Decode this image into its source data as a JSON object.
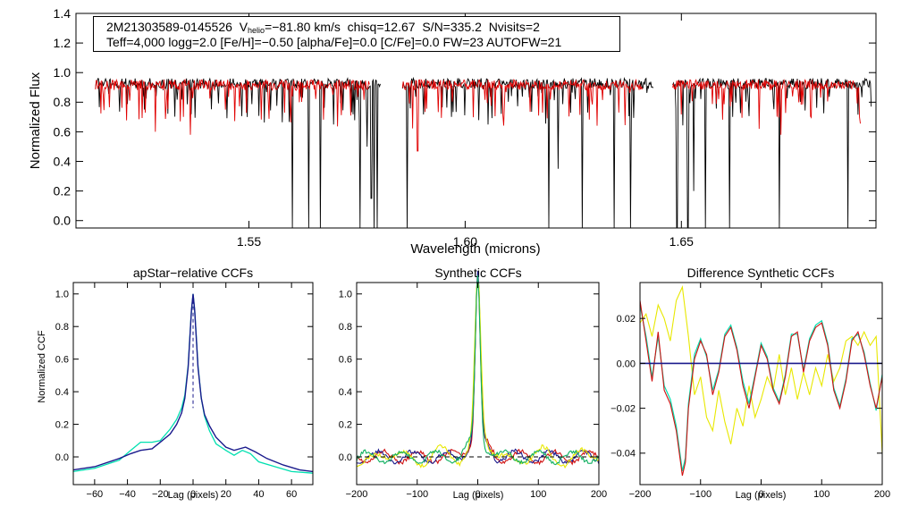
{
  "header": {
    "star_id": "2M21303589-0145526",
    "vhelio_label": "V",
    "vhelio_sub": "helio",
    "vhelio_value": "=−81.80 km/s",
    "chisq": "chisq=12.67",
    "snr": "S/N=335.2",
    "nvisits": "Nvisits=2",
    "params_line": "Teff=4,000 logg=2.0 [Fe/H]=−0.50 [alpha/Fe]=0.0 [C/Fe]=0.0 FW=23 AUTOFW=21"
  },
  "colors": {
    "observed": "#000000",
    "model": "#e00000",
    "ccf_cyan": "#00e0b0",
    "ccf_navy": "#1a1a8c",
    "ccf_yellow": "#e8e800",
    "ccf_red": "#d01010",
    "ccf_green": "#10b060"
  },
  "chart_data": [
    {
      "type": "line",
      "title": "",
      "xlabel": "Wavelength (microns)",
      "ylabel": "Normalized Flux",
      "xlim": [
        1.51,
        1.695
      ],
      "ylim": [
        -0.05,
        1.4
      ],
      "xticks": [
        1.55,
        1.6,
        1.65
      ],
      "xtick_labels": [
        "1.55",
        "1.60",
        "1.65"
      ],
      "yticks": [
        0.0,
        0.2,
        0.4,
        0.6,
        0.8,
        1.0,
        1.2,
        1.4
      ],
      "ytick_labels": [
        "0.0",
        "0.2",
        "0.4",
        "0.6",
        "0.8",
        "1.0",
        "1.2",
        "1.4"
      ],
      "chip_ranges": [
        [
          1.5145,
          1.5805
        ],
        [
          1.5855,
          1.6435
        ],
        [
          1.648,
          1.694
        ]
      ],
      "series": [
        {
          "name": "observed",
          "baseline": 0.92
        },
        {
          "name": "model",
          "baseline": 0.91
        }
      ],
      "deep_lines": [
        {
          "wl": 1.56,
          "depth": -0.05
        },
        {
          "wl": 1.5638,
          "depth": -0.05
        },
        {
          "wl": 1.5665,
          "depth": -0.05
        },
        {
          "wl": 1.5757,
          "depth": -0.05
        },
        {
          "wl": 1.5773,
          "depth": 0.5
        },
        {
          "wl": 1.5783,
          "depth": 0.15
        },
        {
          "wl": 1.579,
          "depth": -0.05
        },
        {
          "wl": 1.5797,
          "depth": -0.05
        },
        {
          "wl": 1.5866,
          "depth": -0.05
        },
        {
          "wl": 1.6193,
          "depth": -0.05
        },
        {
          "wl": 1.6215,
          "depth": 0.35
        },
        {
          "wl": 1.6271,
          "depth": -0.05
        },
        {
          "wl": 1.6345,
          "depth": -0.05
        },
        {
          "wl": 1.6383,
          "depth": -0.05
        },
        {
          "wl": 1.649,
          "depth": -0.05
        },
        {
          "wl": 1.6515,
          "depth": -0.05
        },
        {
          "wl": 1.6528,
          "depth": 0.2
        },
        {
          "wl": 1.6556,
          "depth": -0.05
        },
        {
          "wl": 1.6612,
          "depth": -0.05
        },
        {
          "wl": 1.6727,
          "depth": -0.05
        },
        {
          "wl": 1.6885,
          "depth": -0.05
        }
      ],
      "model_lines": [
        {
          "wl": 1.5283,
          "depth": 0.6
        },
        {
          "wl": 1.5365,
          "depth": 0.58
        },
        {
          "wl": 1.5445,
          "depth": 0.75
        },
        {
          "wl": 1.589,
          "depth": 0.47
        },
        {
          "wl": 1.644,
          "depth": 0.56
        },
        {
          "wl": 1.668,
          "depth": 0.62
        },
        {
          "wl": 1.673,
          "depth": 0.58
        }
      ]
    },
    {
      "type": "line",
      "title": "apStar−relative CCFs",
      "xlabel": "Lag (pixels)",
      "ylabel": "Normalized CCF",
      "xlim": [
        -73,
        73
      ],
      "ylim": [
        -0.17,
        1.07
      ],
      "xticks": [
        -60,
        -40,
        -20,
        0,
        20,
        40,
        60
      ],
      "xtick_labels": [
        "−60",
        "−40",
        "−20",
        "0",
        "20",
        "40",
        "60"
      ],
      "yticks": [
        0.0,
        0.2,
        0.4,
        0.6,
        0.8,
        1.0
      ],
      "ytick_labels": [
        "0.0",
        "0.2",
        "0.4",
        "0.6",
        "0.8",
        "1.0"
      ],
      "series": [
        {
          "name": "ccf_navy",
          "x": [
            -73,
            -60,
            -45,
            -38,
            -32,
            -25,
            -20,
            -14,
            -10,
            -7,
            -5,
            -3,
            -2,
            -1,
            0,
            1,
            2,
            3,
            5,
            7,
            10,
            14,
            20,
            25,
            32,
            38,
            45,
            55,
            65,
            73
          ],
          "y": [
            -0.08,
            -0.06,
            -0.01,
            0.02,
            0.04,
            0.05,
            0.09,
            0.14,
            0.2,
            0.27,
            0.36,
            0.55,
            0.72,
            0.9,
            1.0,
            0.9,
            0.72,
            0.55,
            0.36,
            0.26,
            0.19,
            0.12,
            0.06,
            0.04,
            0.06,
            0.03,
            -0.01,
            -0.05,
            -0.08,
            -0.09
          ]
        },
        {
          "name": "ccf_cyan",
          "x": [
            -73,
            -60,
            -45,
            -38,
            -32,
            -25,
            -20,
            -14,
            -10,
            -7,
            -5,
            -3,
            -2,
            -1,
            0,
            1,
            2,
            3,
            5,
            7,
            10,
            14,
            20,
            25,
            30,
            35,
            40,
            50,
            60,
            73
          ],
          "y": [
            -0.09,
            -0.07,
            -0.02,
            0.04,
            0.09,
            0.09,
            0.1,
            0.17,
            0.23,
            0.3,
            0.38,
            0.56,
            0.73,
            0.9,
            1.0,
            0.9,
            0.73,
            0.56,
            0.36,
            0.25,
            0.16,
            0.08,
            0.04,
            0.01,
            0.04,
            0.02,
            -0.03,
            -0.06,
            -0.09,
            -0.1
          ]
        }
      ],
      "dashed_zero": false
    },
    {
      "type": "line",
      "title": "Synthetic CCFs",
      "xlabel": "Lag (pixels)",
      "ylabel": "",
      "xlim": [
        -200,
        200
      ],
      "ylim": [
        -0.17,
        1.07
      ],
      "xticks": [
        -200,
        -100,
        0,
        100,
        200
      ],
      "xtick_labels": [
        "−200",
        "−100",
        "0",
        "100",
        "200"
      ],
      "yticks": [
        0.0,
        0.2,
        0.4,
        0.6,
        0.8,
        1.0
      ],
      "ytick_labels": [
        "0.0",
        "0.2",
        "0.4",
        "0.6",
        "0.8",
        "1.0"
      ],
      "series": [
        {
          "name": "ccf_red",
          "peak": 1.0,
          "width": 4
        },
        {
          "name": "ccf_navy",
          "peak": 1.0,
          "width": 4
        },
        {
          "name": "ccf_yellow",
          "peak": 0.95,
          "width": 5
        },
        {
          "name": "ccf_green",
          "peak": 0.98,
          "width": 4
        }
      ],
      "dashed_zero": true
    },
    {
      "type": "line",
      "title": "Difference Synthetic CCFs",
      "xlabel": "Lag (pixels)",
      "ylabel": "",
      "xlim": [
        -200,
        200
      ],
      "ylim": [
        -0.054,
        0.036
      ],
      "xticks": [
        -200,
        -100,
        0,
        100,
        200
      ],
      "xtick_labels": [
        "−200",
        "−100",
        "0",
        "100",
        "200"
      ],
      "yticks": [
        -0.04,
        -0.02,
        0.0,
        0.02
      ],
      "ytick_labels": [
        "−0.04",
        "−0.02",
        "0.00",
        "0.02"
      ],
      "series": [
        {
          "name": "ccf_red",
          "x": [
            -200,
            -190,
            -180,
            -170,
            -160,
            -150,
            -140,
            -130,
            -125,
            -120,
            -110,
            -100,
            -90,
            -80,
            -70,
            -60,
            -50,
            -40,
            -30,
            -20,
            -10,
            0,
            10,
            20,
            30,
            40,
            50,
            60,
            70,
            80,
            90,
            100,
            110,
            120,
            130,
            140,
            150,
            160,
            170,
            180,
            190,
            200
          ],
          "y": [
            0.028,
            0.01,
            -0.008,
            0.014,
            -0.012,
            -0.018,
            -0.03,
            -0.05,
            -0.044,
            -0.02,
            0.002,
            0.01,
            0.004,
            -0.014,
            -0.004,
            0.012,
            0.016,
            0.006,
            -0.01,
            -0.02,
            -0.006,
            0.008,
            0.002,
            -0.012,
            -0.018,
            -0.006,
            0.012,
            0.014,
            -0.004,
            0.01,
            0.016,
            0.018,
            0.008,
            -0.012,
            -0.02,
            -0.008,
            0.01,
            0.014,
            0.004,
            -0.01,
            -0.02,
            -0.006
          ]
        },
        {
          "name": "ccf_cyan",
          "x": [
            -200,
            -190,
            -180,
            -170,
            -160,
            -150,
            -140,
            -130,
            -125,
            -120,
            -110,
            -100,
            -90,
            -80,
            -70,
            -60,
            -50,
            -40,
            -30,
            -20,
            -10,
            0,
            10,
            20,
            30,
            40,
            50,
            60,
            70,
            80,
            90,
            100,
            110,
            120,
            130,
            140,
            150,
            160,
            170,
            180,
            190,
            200
          ],
          "y": [
            0.026,
            0.012,
            -0.006,
            0.012,
            -0.01,
            -0.016,
            -0.028,
            -0.048,
            -0.042,
            -0.018,
            0.004,
            0.011,
            0.003,
            -0.012,
            -0.003,
            0.013,
            0.017,
            0.007,
            -0.008,
            -0.018,
            -0.005,
            0.009,
            0.003,
            -0.011,
            -0.017,
            -0.005,
            0.013,
            0.013,
            -0.003,
            0.011,
            0.017,
            0.019,
            0.009,
            -0.011,
            -0.019,
            -0.007,
            0.011,
            0.013,
            0.005,
            -0.009,
            -0.021,
            -0.005
          ]
        },
        {
          "name": "ccf_yellow",
          "x": [
            -200,
            -190,
            -180,
            -170,
            -160,
            -150,
            -140,
            -130,
            -120,
            -110,
            -100,
            -90,
            -80,
            -70,
            -60,
            -50,
            -40,
            -30,
            -20,
            -10,
            0,
            10,
            20,
            30,
            40,
            50,
            60,
            70,
            80,
            90,
            100,
            110,
            120,
            130,
            140,
            150,
            160,
            170,
            180,
            190,
            200
          ],
          "y": [
            0.018,
            0.022,
            0.012,
            0.026,
            0.02,
            0.01,
            0.028,
            0.034,
            0.012,
            -0.014,
            -0.006,
            -0.024,
            -0.03,
            -0.012,
            -0.026,
            -0.036,
            -0.02,
            -0.028,
            -0.01,
            -0.024,
            -0.016,
            -0.006,
            -0.012,
            0.004,
            -0.014,
            -0.002,
            -0.016,
            -0.004,
            -0.014,
            -0.002,
            -0.01,
            0.004,
            -0.008,
            -0.002,
            0.01,
            0.012,
            0.008,
            0.014,
            0.008,
            0.012,
            -0.04
          ]
        },
        {
          "name": "ccf_navy",
          "x": [
            -200,
            200
          ],
          "y": [
            0.0,
            0.0
          ]
        }
      ],
      "dashed_zero": false
    }
  ]
}
